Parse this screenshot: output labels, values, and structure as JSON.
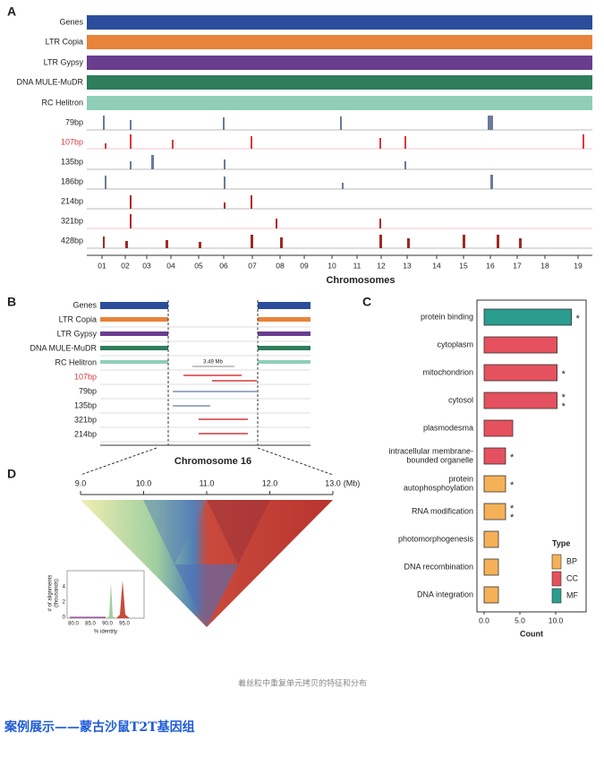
{
  "panel_a": {
    "letter": "A",
    "tracks": [
      "Genes",
      "LTR Copia",
      "LTR Gypsy",
      "DNA MULE-MuDR",
      "RC Helitron",
      "79bp",
      "107bp",
      "135bp",
      "186bp",
      "214bp",
      "321bp",
      "428bp"
    ],
    "chromosomes": [
      "01",
      "02",
      "03",
      "04",
      "05",
      "06",
      "07",
      "08",
      "09",
      "10",
      "11",
      "12",
      "13",
      "14",
      "15",
      "16",
      "17",
      "18",
      "19"
    ],
    "x_label": "Chromosomes"
  },
  "panel_b": {
    "letter": "B",
    "tracks": [
      "Genes",
      "LTR Copia",
      "LTR Gypsy",
      "DNA MULE-MuDR",
      "RC Helitron",
      "107bp",
      "79bp",
      "135bp",
      "321bp",
      "214bp"
    ],
    "span": "3.49 Mb",
    "title": "Chromosome 16"
  },
  "panel_c": {
    "letter": "C"
  },
  "panel_d": {
    "letter": "D",
    "ticks": [
      "9.0",
      "10.0",
      "11.0",
      "12.0",
      "13.0"
    ],
    "unit": "(Mb)",
    "inset": {
      "y_label_1": "# of alignments",
      "y_label_2": "(thousands)",
      "x_label": "% identity",
      "xticks": [
        "80.0",
        "85.0",
        "90.0",
        "95.0"
      ],
      "yticks": [
        "0",
        "2",
        "4"
      ]
    }
  },
  "caption": "着丝粒中重复单元拷贝的特征和分布",
  "heading": "案例展示——蒙古沙鼠T2T基因组",
  "chart_data": {
    "type": "hbar",
    "categories": [
      [
        "protein binding"
      ],
      [
        "cytoplasm"
      ],
      [
        "mitochondrion"
      ],
      [
        "cytosol"
      ],
      [
        "plasmodesma"
      ],
      [
        "intracellular membrane-",
        "bounded organelle"
      ],
      [
        "protein",
        "autophosphoylation"
      ],
      [
        "RNA modification"
      ],
      [
        "photomorphogenesis"
      ],
      [
        "DNA recombination"
      ],
      [
        "DNA integration"
      ]
    ],
    "values": [
      12.2,
      10.2,
      10.2,
      10.2,
      4,
      3,
      3,
      3,
      2,
      2,
      2
    ],
    "types": [
      "MF",
      "CC",
      "CC",
      "CC",
      "CC",
      "CC",
      "BP",
      "BP",
      "BP",
      "BP",
      "BP"
    ],
    "asterisks": [
      [
        "*"
      ],
      [],
      [
        "*"
      ],
      [
        "*",
        "*"
      ],
      [],
      [
        "*"
      ],
      [
        "*"
      ],
      [
        "*",
        "*"
      ],
      [],
      [],
      []
    ],
    "legend": {
      "title": "Type",
      "entries": [
        {
          "name": "BP",
          "color": "#f5b157"
        },
        {
          "name": "CC",
          "color": "#e5515e"
        },
        {
          "name": "MF",
          "color": "#2a9d8f"
        }
      ]
    },
    "xlabel": "Count",
    "xlim": [
      -1,
      14.25
    ],
    "xticks": [
      {
        "value": 0,
        "label": "0.0"
      },
      {
        "value": 5,
        "label": "5.0"
      },
      {
        "value": 10,
        "label": "10.0"
      }
    ]
  }
}
